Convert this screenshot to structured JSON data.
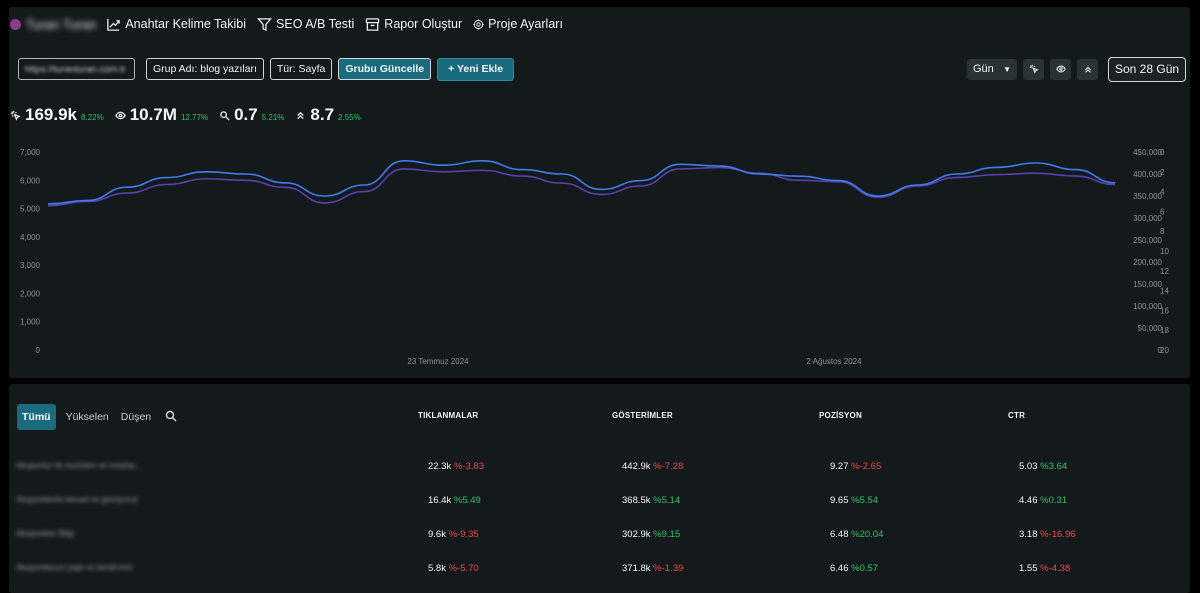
{
  "project": {
    "name": "Turan Turan",
    "dot_color": "#8a3d8a"
  },
  "nav": [
    {
      "label": "Anahtar Kelime Takibi",
      "icon": "trend-up-icon"
    },
    {
      "label": "SEO A/B Testi",
      "icon": "filter-icon"
    },
    {
      "label": "Rapor Oluştur",
      "icon": "archive-icon"
    },
    {
      "label": "Proje Ayarları",
      "icon": "gear-icon"
    }
  ],
  "toolbar": {
    "url": "https://turanturan.com.tr",
    "group_name": "Grup Adı: blog yazıları",
    "type": "Tür: Sayfa",
    "update_group": "Grubu Güncelle",
    "add_new": "+ Yeni Ekle"
  },
  "controls": {
    "granularity": "Gün",
    "date_range": "Son 28 Gün"
  },
  "metrics": [
    {
      "icon": "click-icon",
      "value": "169.9k",
      "change": "8.22%"
    },
    {
      "icon": "eye-icon",
      "value": "10.7M",
      "change": "12.77%"
    },
    {
      "icon": "search-icon",
      "value": "0.7",
      "change": "5.21%"
    },
    {
      "icon": "position-icon",
      "value": "8.7",
      "change": "2.55%"
    }
  ],
  "colors": {
    "accent": "#1b6b7f",
    "positive": "#2ec26a",
    "negative": "#e84a4a",
    "line_clicks": "#5a3fb0",
    "line_impressions": "#3f7bea"
  },
  "chart_data": {
    "type": "line",
    "x_ticks": [
      "23 Temmuz 2024",
      "2 Ağustos 2024"
    ],
    "y_left_ticks": [
      "7,000",
      "6,000",
      "5,000",
      "4,000",
      "3,000",
      "2,000",
      "1,000",
      "0"
    ],
    "y_right1_ticks": [
      "450,000",
      "400,000",
      "350,000",
      "300,000",
      "250,000",
      "200,000",
      "150,000",
      "100,000",
      "50,000",
      "0"
    ],
    "y_right2_ticks": [
      "0",
      "2",
      "4",
      "6",
      "8",
      "10",
      "12",
      "14",
      "16",
      "18",
      "20"
    ],
    "ylim_left": [
      0,
      7000
    ],
    "ylim_right": [
      0,
      450000
    ],
    "grid": false,
    "series": [
      {
        "axis": "left",
        "color": "#5a3fb0",
        "values": [
          5100,
          5250,
          5550,
          5850,
          6050,
          6000,
          5750,
          5200,
          5600,
          6400,
          6300,
          6350,
          6150,
          5900,
          5500,
          5800,
          6400,
          6450,
          6250,
          6000,
          5950,
          5400,
          5800,
          6100,
          6200,
          6250,
          6150,
          5850
        ]
      },
      {
        "axis": "right",
        "color": "#3f7bea",
        "values": [
          332000,
          340000,
          370000,
          392000,
          405000,
          400000,
          380000,
          350000,
          375000,
          430000,
          420000,
          430000,
          410000,
          400000,
          365000,
          385000,
          422000,
          418000,
          400000,
          395000,
          385000,
          350000,
          375000,
          400000,
          415000,
          425000,
          410000,
          380000
        ]
      }
    ]
  },
  "table": {
    "filters": [
      "Tümü",
      "Yükselen",
      "Düşen"
    ],
    "headers": {
      "clicks": "TIKLANMALAR",
      "impressions": "GÖSTERİMLER",
      "position": "POZİSYON",
      "ctr": "CTR"
    },
    "rows": [
      {
        "name": "Akupuntur ile mucizevi ve sıradışı...",
        "clicks": "22.3k",
        "clicks_chg": "%-3.83",
        "clicks_dir": "neg",
        "impr": "442.9k",
        "impr_chg": "%-7.28",
        "impr_dir": "neg",
        "pos": "9.27",
        "pos_chg": "%-2.65",
        "pos_dir": "neg",
        "ctr": "5.03",
        "ctr_chg": "%3.64",
        "ctr_dir": "pos"
      },
      {
        "name": "Akupunkturla tanısal ve gücüyoruz",
        "clicks": "16.4k",
        "clicks_chg": "%5.49",
        "clicks_dir": "pos",
        "impr": "368.5k",
        "impr_chg": "%5.14",
        "impr_dir": "pos",
        "pos": "9.65",
        "pos_chg": "%5.54",
        "pos_dir": "pos",
        "ctr": "4.46",
        "ctr_chg": "%0.31",
        "ctr_dir": "pos"
      },
      {
        "name": "Akupunktur Bilgi",
        "clicks": "9.6k",
        "clicks_chg": "%-9.35",
        "clicks_dir": "neg",
        "impr": "302.9k",
        "impr_chg": "%9.15",
        "impr_dir": "pos",
        "pos": "6.48",
        "pos_chg": "%20.04",
        "pos_dir": "pos",
        "ctr": "3.18",
        "ctr_chg": "%-16.96",
        "ctr_dir": "neg"
      },
      {
        "name": "Akupunkturun yaşlı ve kendi krizi",
        "clicks": "5.8k",
        "clicks_chg": "%-5.70",
        "clicks_dir": "neg",
        "impr": "371.8k",
        "impr_chg": "%-1.39",
        "impr_dir": "neg",
        "pos": "6.46",
        "pos_chg": "%0.57",
        "pos_dir": "pos",
        "ctr": "1.55",
        "ctr_chg": "%-4.38",
        "ctr_dir": "neg"
      }
    ]
  }
}
